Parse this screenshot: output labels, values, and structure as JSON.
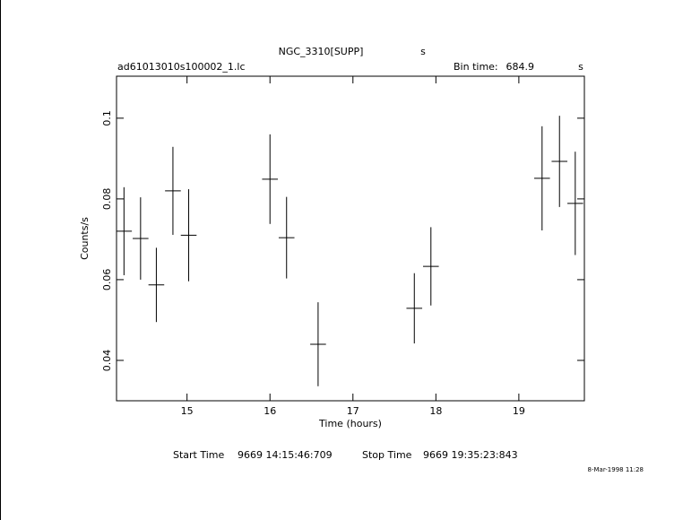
{
  "chart_data": {
    "type": "errorbar",
    "title": "NGC_3310[SUPP]",
    "title_unit": "s",
    "filename": "ad61013010s100002_1.lc",
    "bin_time_label": "Bin time:",
    "bin_time": 684.9,
    "bin_time_unit": "s",
    "xlabel": "Time (hours)",
    "ylabel": "Counts/s",
    "x": [
      14.24,
      14.44,
      14.63,
      14.83,
      15.02,
      16.0,
      16.2,
      16.58,
      17.74,
      17.94,
      19.28,
      19.49,
      19.68
    ],
    "xerr": [
      0.095,
      0.095,
      0.095,
      0.095,
      0.095,
      0.095,
      0.095,
      0.095,
      0.095,
      0.095,
      0.095,
      0.095,
      0.095
    ],
    "values": [
      0.072,
      0.0702,
      0.0587,
      0.082,
      0.071,
      0.0849,
      0.0704,
      0.044,
      0.0529,
      0.0633,
      0.0851,
      0.0893,
      0.0789
    ],
    "yerr": [
      0.0109,
      0.0102,
      0.0092,
      0.0109,
      0.0114,
      0.0111,
      0.0101,
      0.0104,
      0.0087,
      0.0097,
      0.0129,
      0.0113,
      0.0128
    ],
    "color": "#000000",
    "xlim": [
      14.15,
      19.79
    ],
    "xticks": [
      15,
      16,
      17,
      18,
      19
    ],
    "ylim": [
      0.03,
      0.1104
    ],
    "yticks": [
      0.04,
      0.06,
      0.08,
      0.1
    ],
    "start_label": "Start Time",
    "start": "9669 14:15:46:709",
    "stop_label": "Stop Time",
    "stop": "9669 19:35:23:843",
    "date": "8-Mar-1998 11:28"
  }
}
